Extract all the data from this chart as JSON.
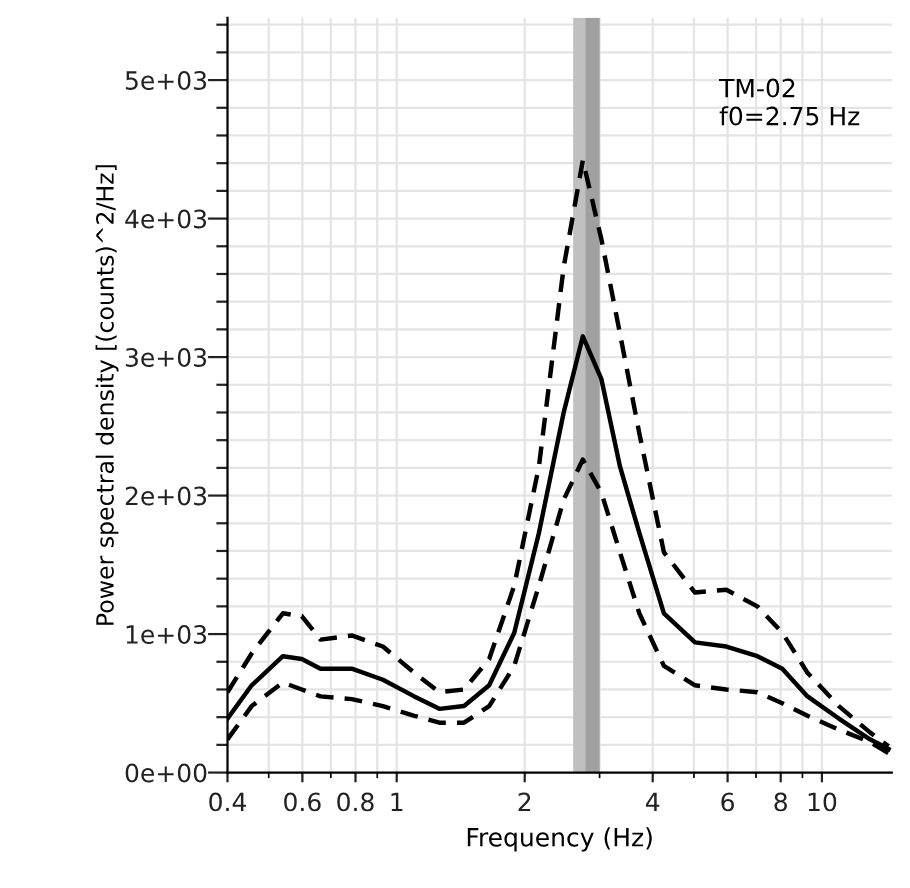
{
  "chart_data": {
    "type": "line",
    "xlabel": "Frequency (Hz)",
    "ylabel": "Power spectral density [(counts)^2/Hz]",
    "annotations": [
      "TM-02\nf0=2.75 Hz"
    ],
    "log": "x",
    "grid": true,
    "xlim": [
      0.4,
      14.6
    ],
    "ylim": [
      0,
      5450
    ],
    "xticks": [
      0.4,
      0.6,
      0.8,
      1,
      2,
      4,
      6,
      8,
      10
    ],
    "yticks": [
      {
        "value": 0,
        "label": "0e+00"
      },
      {
        "value": 200,
        "label": null
      },
      {
        "value": 400,
        "label": null
      },
      {
        "value": 600,
        "label": null
      },
      {
        "value": 800,
        "label": null
      },
      {
        "value": 1000,
        "label": "1e+03"
      },
      {
        "value": 1200,
        "label": null
      },
      {
        "value": 1400,
        "label": null
      },
      {
        "value": 1600,
        "label": null
      },
      {
        "value": 1800,
        "label": null
      },
      {
        "value": 2000,
        "label": "2e+03"
      },
      {
        "value": 2200,
        "label": null
      },
      {
        "value": 2400,
        "label": null
      },
      {
        "value": 2600,
        "label": null
      },
      {
        "value": 2800,
        "label": null
      },
      {
        "value": 3000,
        "label": "3e+03"
      },
      {
        "value": 3200,
        "label": null
      },
      {
        "value": 3400,
        "label": null
      },
      {
        "value": 3600,
        "label": null
      },
      {
        "value": 3800,
        "label": null
      },
      {
        "value": 4000,
        "label": "4e+03"
      },
      {
        "value": 4200,
        "label": null
      },
      {
        "value": 4400,
        "label": null
      },
      {
        "value": 4600,
        "label": null
      },
      {
        "value": 4800,
        "label": null
      },
      {
        "value": 5000,
        "label": "5e+03"
      },
      {
        "value": 5200,
        "label": null
      },
      {
        "value": 5400,
        "label": null
      }
    ],
    "bands": [
      {
        "axis": "x",
        "from": 2.6,
        "to": 3.0,
        "color": "#c0c0c0"
      },
      {
        "axis": "x",
        "from": 2.78,
        "to": 3.0,
        "color": "#a0a0a0"
      }
    ],
    "x": [
      0.4,
      0.456,
      0.54,
      0.598,
      0.662,
      0.784,
      0.928,
      1.1,
      1.26,
      1.44,
      1.65,
      1.89,
      2.16,
      2.47,
      2.74,
      3.03,
      3.35,
      3.72,
      4.25,
      5.03,
      5.96,
      7.05,
      8.07,
      9.25,
      10.96,
      12.97,
      14.35
    ],
    "series": [
      {
        "color": "#000000",
        "line_style": "solid",
        "values": [
          390,
          630,
          840,
          820,
          750,
          750,
          670,
          550,
          460,
          480,
          630,
          1010,
          1730,
          2600,
          3150,
          2840,
          2210,
          1730,
          1150,
          940,
          910,
          840,
          750,
          550,
          390,
          240,
          170
        ]
      },
      {
        "color": "#000000",
        "line_style": "dashed",
        "values": [
          580,
          860,
          1150,
          1130,
          960,
          990,
          910,
          720,
          580,
          600,
          820,
          1350,
          2210,
          3650,
          4420,
          3850,
          3170,
          2450,
          1590,
          1300,
          1320,
          1200,
          1010,
          720,
          480,
          290,
          190
        ]
      },
      {
        "color": "#000000",
        "line_style": "dashed",
        "values": [
          240,
          480,
          650,
          600,
          550,
          530,
          480,
          410,
          360,
          360,
          480,
          770,
          1350,
          1970,
          2260,
          2020,
          1590,
          1150,
          770,
          630,
          600,
          580,
          500,
          410,
          310,
          220,
          140
        ]
      }
    ]
  }
}
